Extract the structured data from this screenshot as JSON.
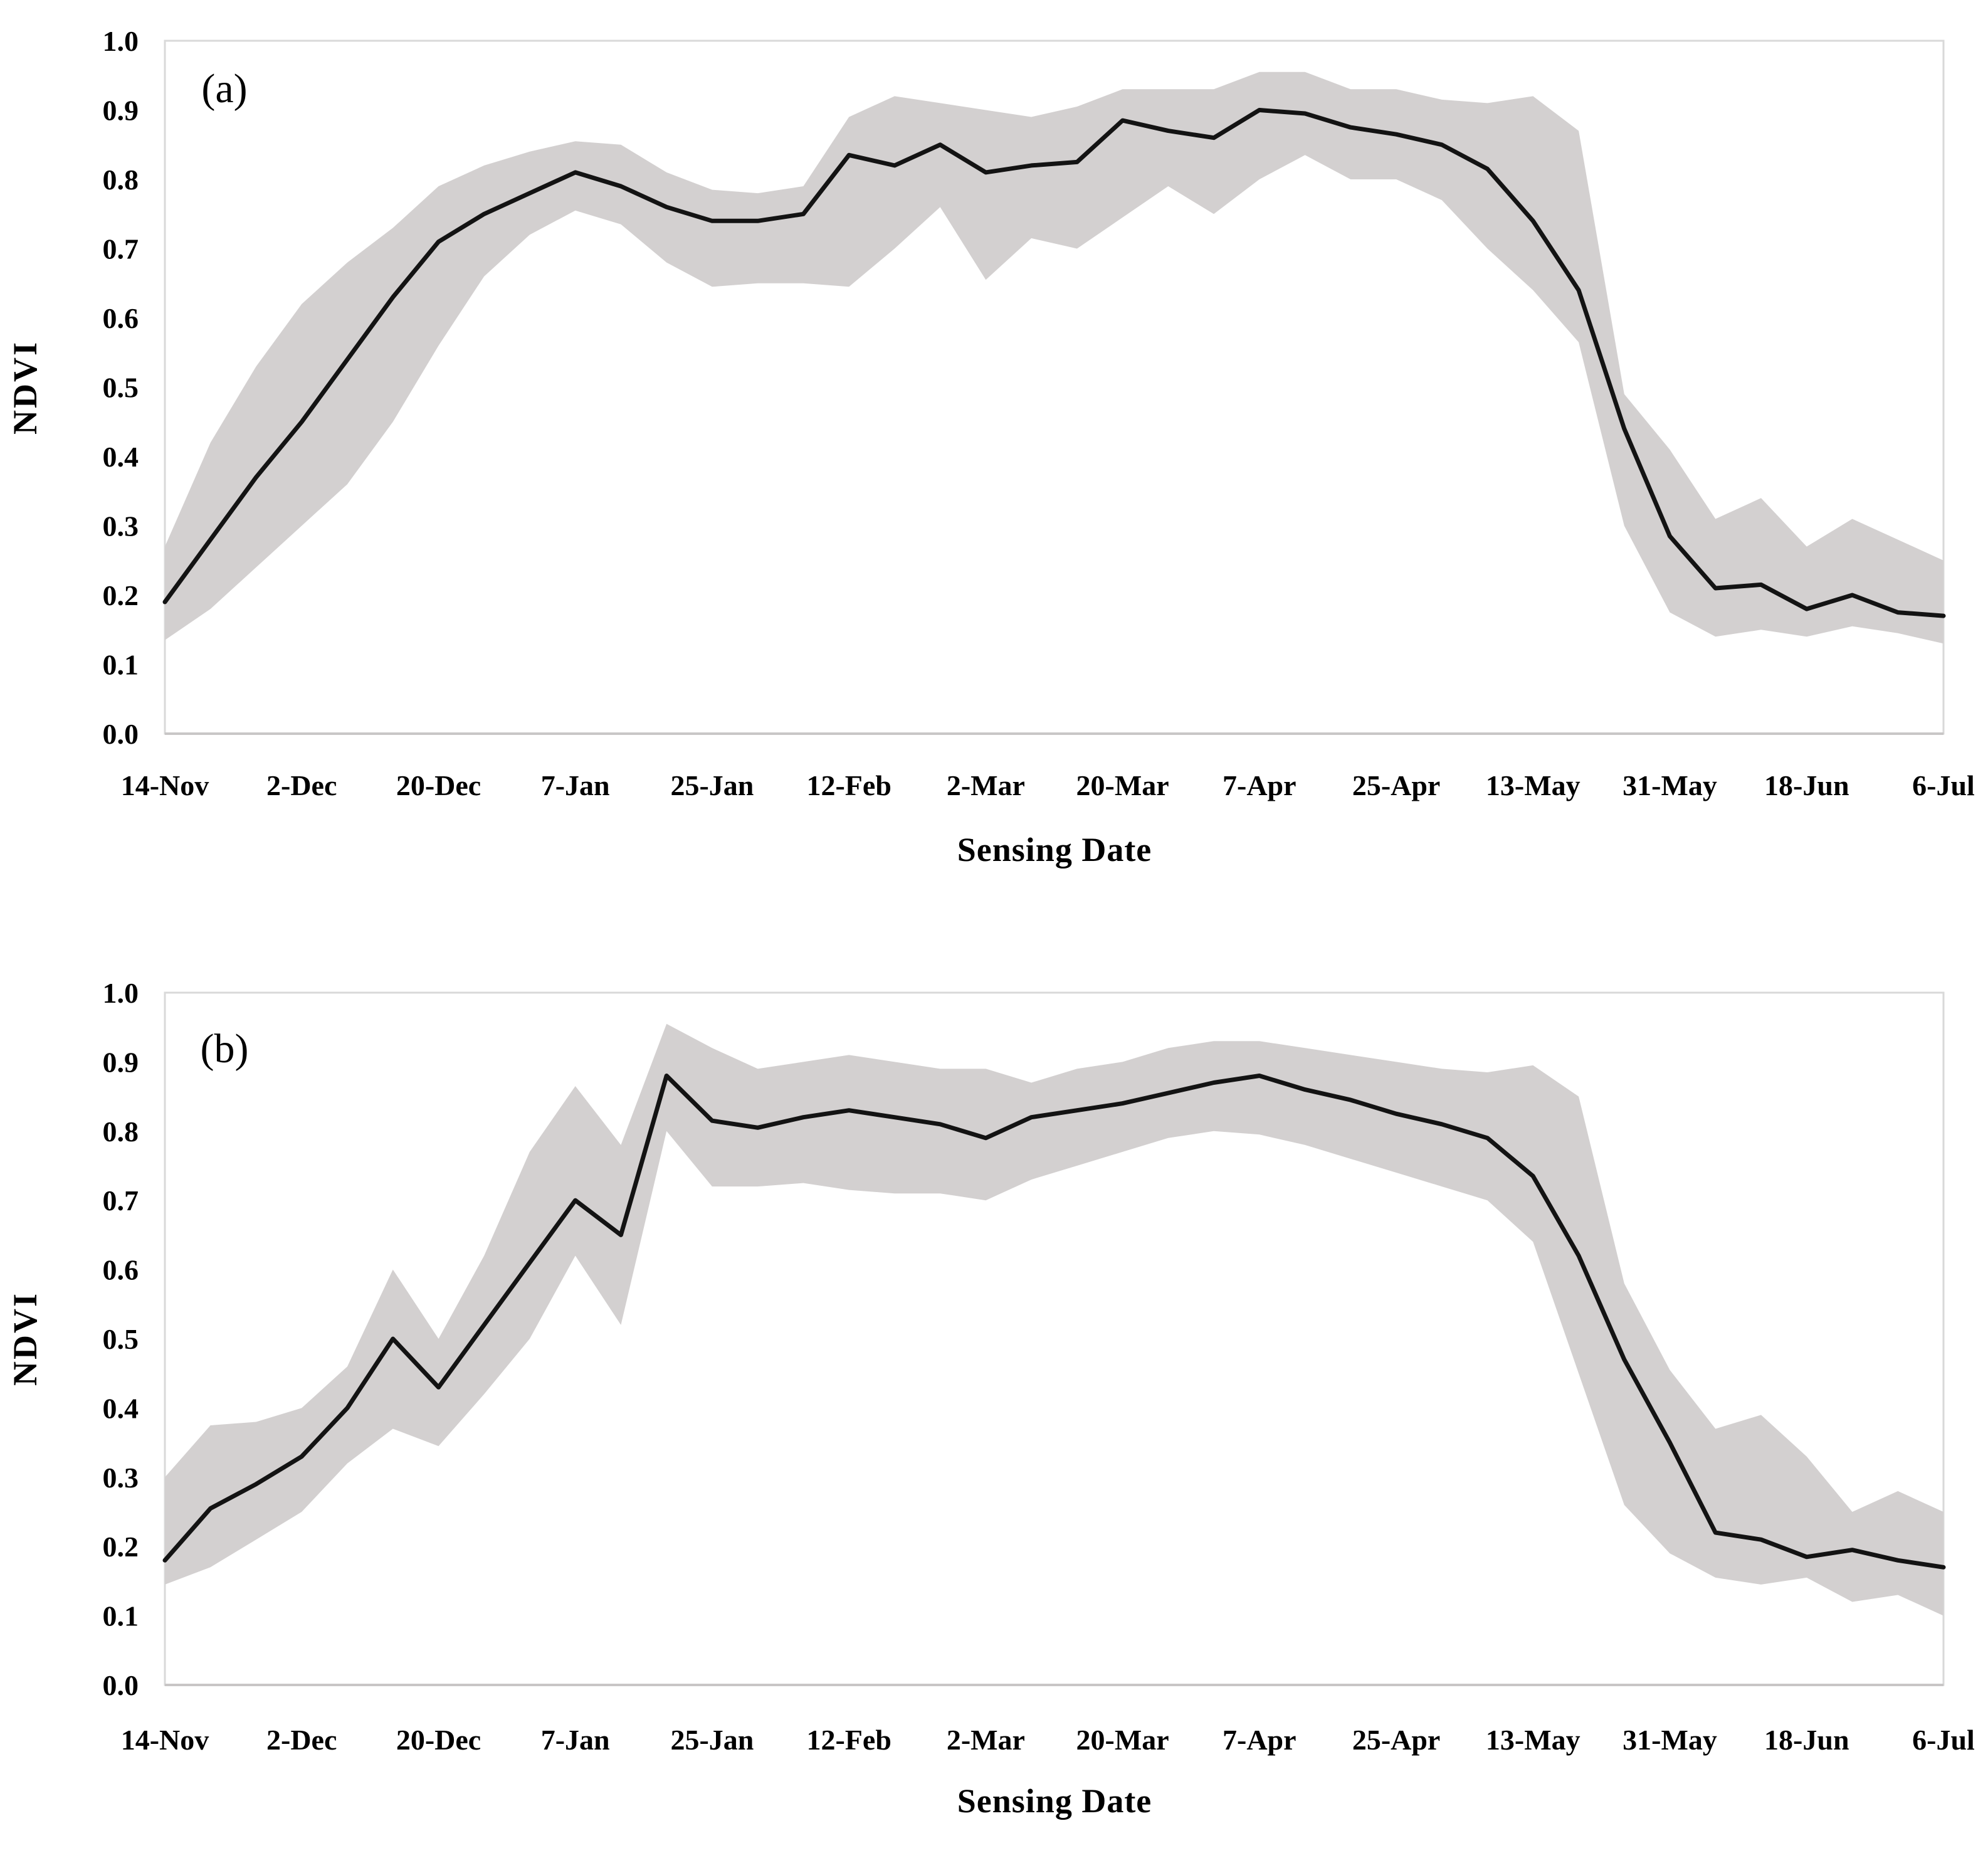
{
  "figure": {
    "background": "#ffffff",
    "line_color": "#131313",
    "band_color": "#d3d0d0",
    "border_color": "#d9d9d9",
    "axis_line_color": "#c8c6c6",
    "text_color": "#000000"
  },
  "chart_data": [
    {
      "type": "line",
      "panel_label": "(a)",
      "xlabel": "Sensing Date",
      "ylabel": "NDVI",
      "ylim": [
        0.0,
        1.0
      ],
      "grid": false,
      "legend": "none",
      "band": "shaded min-max envelope around mean NDVI line",
      "yticks": [
        "0.0",
        "0.1",
        "0.2",
        "0.3",
        "0.4",
        "0.5",
        "0.6",
        "0.7",
        "0.8",
        "0.9",
        "1.0"
      ],
      "x_tick_labels": [
        "14-Nov",
        "2-Dec",
        "20-Dec",
        "7-Jan",
        "25-Jan",
        "12-Feb",
        "2-Mar",
        "20-Mar",
        "7-Apr",
        "25-Apr",
        "13-May",
        "31-May",
        "18-Jun",
        "6-Jul"
      ],
      "x": [
        "14-Nov",
        "20-Nov",
        "26-Nov",
        "2-Dec",
        "8-Dec",
        "14-Dec",
        "20-Dec",
        "26-Dec",
        "1-Jan",
        "7-Jan",
        "13-Jan",
        "19-Jan",
        "25-Jan",
        "31-Jan",
        "6-Feb",
        "12-Feb",
        "18-Feb",
        "24-Feb",
        "2-Mar",
        "8-Mar",
        "14-Mar",
        "20-Mar",
        "26-Mar",
        "1-Apr",
        "7-Apr",
        "13-Apr",
        "19-Apr",
        "25-Apr",
        "1-May",
        "7-May",
        "13-May",
        "19-May",
        "25-May",
        "31-May",
        "6-Jun",
        "12-Jun",
        "18-Jun",
        "24-Jun",
        "30-Jun",
        "6-Jul"
      ],
      "values": [
        0.19,
        0.28,
        0.37,
        0.45,
        0.54,
        0.63,
        0.71,
        0.75,
        0.78,
        0.81,
        0.79,
        0.76,
        0.74,
        0.74,
        0.75,
        0.835,
        0.82,
        0.85,
        0.81,
        0.82,
        0.825,
        0.885,
        0.87,
        0.86,
        0.9,
        0.895,
        0.875,
        0.865,
        0.85,
        0.815,
        0.74,
        0.64,
        0.44,
        0.285,
        0.21,
        0.215,
        0.18,
        0.2,
        0.175,
        0.17
      ],
      "band_upper": [
        0.27,
        0.42,
        0.53,
        0.62,
        0.68,
        0.73,
        0.79,
        0.82,
        0.84,
        0.855,
        0.85,
        0.81,
        0.785,
        0.78,
        0.79,
        0.89,
        0.92,
        0.91,
        0.9,
        0.89,
        0.905,
        0.93,
        0.93,
        0.93,
        0.955,
        0.955,
        0.93,
        0.93,
        0.915,
        0.91,
        0.92,
        0.87,
        0.49,
        0.41,
        0.31,
        0.34,
        0.27,
        0.31,
        0.28,
        0.25
      ],
      "band_lower": [
        0.135,
        0.18,
        0.24,
        0.3,
        0.36,
        0.45,
        0.56,
        0.66,
        0.72,
        0.755,
        0.735,
        0.68,
        0.645,
        0.65,
        0.65,
        0.645,
        0.7,
        0.76,
        0.655,
        0.715,
        0.7,
        0.745,
        0.79,
        0.75,
        0.8,
        0.835,
        0.8,
        0.8,
        0.77,
        0.7,
        0.64,
        0.565,
        0.3,
        0.175,
        0.14,
        0.15,
        0.14,
        0.155,
        0.145,
        0.13
      ]
    },
    {
      "type": "line",
      "panel_label": "(b)",
      "xlabel": "Sensing Date",
      "ylabel": "NDVI",
      "ylim": [
        0.0,
        1.0
      ],
      "grid": false,
      "legend": "none",
      "band": "shaded min-max envelope around mean NDVI line",
      "yticks": [
        "0.0",
        "0.1",
        "0.2",
        "0.3",
        "0.4",
        "0.5",
        "0.6",
        "0.7",
        "0.8",
        "0.9",
        "1.0"
      ],
      "x_tick_labels": [
        "14-Nov",
        "2-Dec",
        "20-Dec",
        "7-Jan",
        "25-Jan",
        "12-Feb",
        "2-Mar",
        "20-Mar",
        "7-Apr",
        "25-Apr",
        "13-May",
        "31-May",
        "18-Jun",
        "6-Jul"
      ],
      "x": [
        "14-Nov",
        "20-Nov",
        "26-Nov",
        "2-Dec",
        "8-Dec",
        "14-Dec",
        "20-Dec",
        "26-Dec",
        "1-Jan",
        "7-Jan",
        "13-Jan",
        "19-Jan",
        "25-Jan",
        "31-Jan",
        "6-Feb",
        "12-Feb",
        "18-Feb",
        "24-Feb",
        "2-Mar",
        "8-Mar",
        "14-Mar",
        "20-Mar",
        "26-Mar",
        "1-Apr",
        "7-Apr",
        "13-Apr",
        "19-Apr",
        "25-Apr",
        "1-May",
        "7-May",
        "13-May",
        "19-May",
        "25-May",
        "31-May",
        "6-Jun",
        "12-Jun",
        "18-Jun",
        "24-Jun",
        "30-Jun",
        "6-Jul"
      ],
      "values": [
        0.18,
        0.255,
        0.29,
        0.33,
        0.4,
        0.5,
        0.43,
        0.52,
        0.61,
        0.7,
        0.65,
        0.88,
        0.815,
        0.805,
        0.82,
        0.83,
        0.82,
        0.81,
        0.79,
        0.82,
        0.83,
        0.84,
        0.855,
        0.87,
        0.88,
        0.86,
        0.845,
        0.825,
        0.81,
        0.79,
        0.735,
        0.62,
        0.47,
        0.35,
        0.22,
        0.21,
        0.185,
        0.195,
        0.18,
        0.17
      ],
      "band_upper": [
        0.3,
        0.375,
        0.38,
        0.4,
        0.46,
        0.6,
        0.5,
        0.62,
        0.77,
        0.865,
        0.78,
        0.955,
        0.92,
        0.89,
        0.9,
        0.91,
        0.9,
        0.89,
        0.89,
        0.87,
        0.89,
        0.9,
        0.92,
        0.93,
        0.93,
        0.92,
        0.91,
        0.9,
        0.89,
        0.885,
        0.895,
        0.85,
        0.58,
        0.455,
        0.37,
        0.39,
        0.33,
        0.25,
        0.28,
        0.25
      ],
      "band_lower": [
        0.145,
        0.17,
        0.21,
        0.25,
        0.32,
        0.37,
        0.345,
        0.42,
        0.5,
        0.62,
        0.52,
        0.8,
        0.72,
        0.72,
        0.725,
        0.715,
        0.71,
        0.71,
        0.7,
        0.73,
        0.75,
        0.77,
        0.79,
        0.8,
        0.795,
        0.78,
        0.76,
        0.74,
        0.72,
        0.7,
        0.64,
        0.45,
        0.26,
        0.19,
        0.155,
        0.145,
        0.155,
        0.12,
        0.13,
        0.1
      ]
    }
  ]
}
